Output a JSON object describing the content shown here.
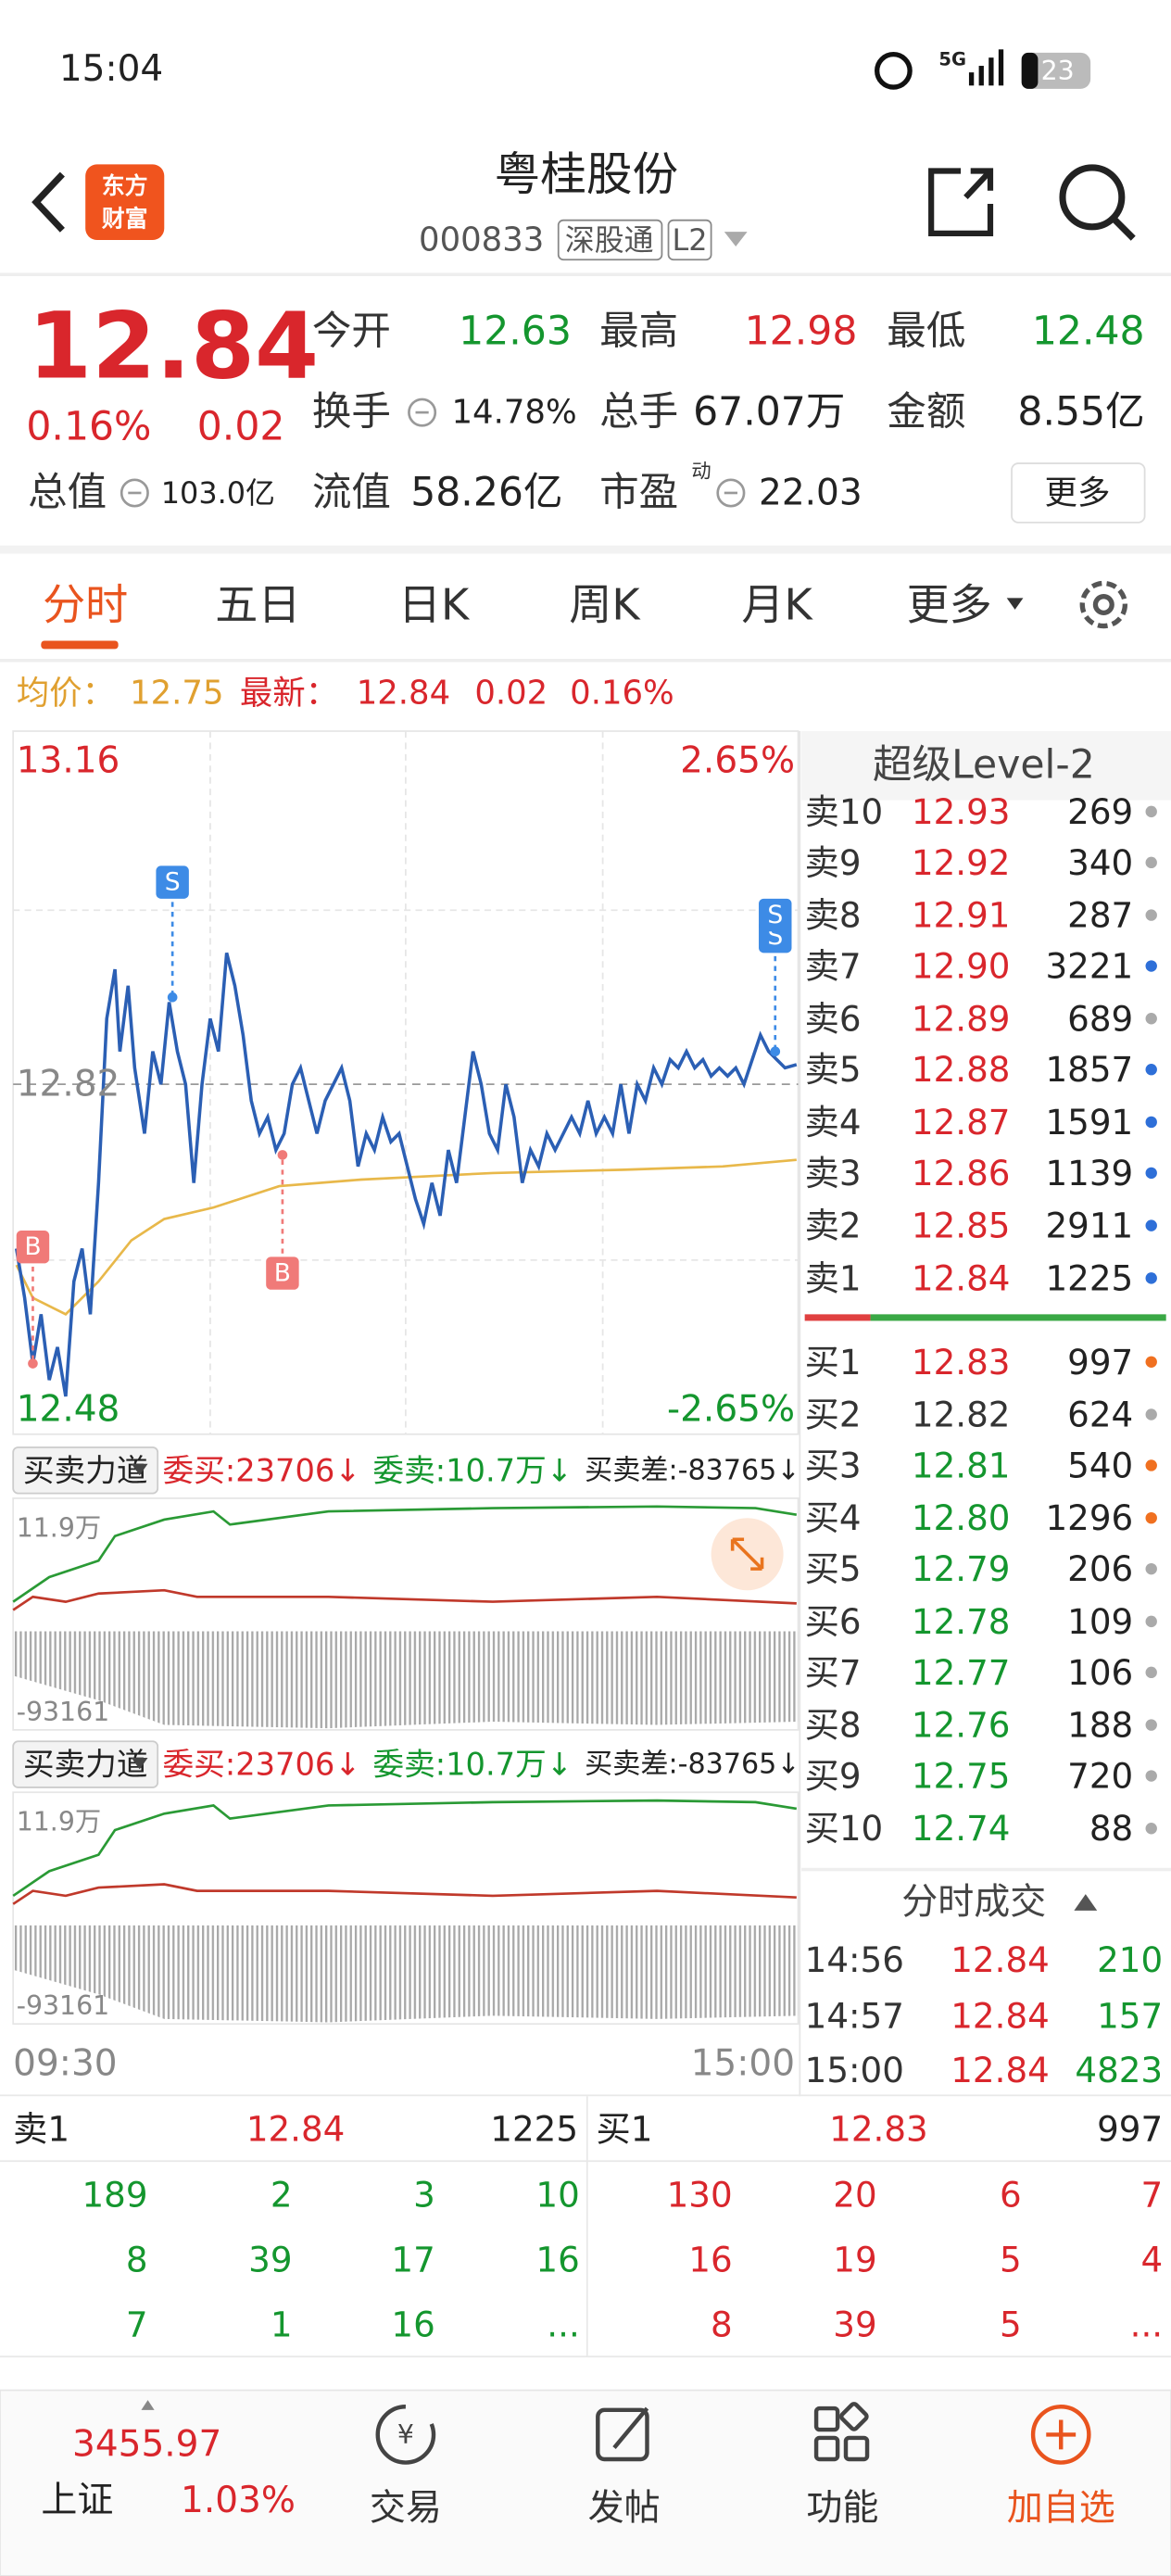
{
  "status_bar": {
    "time": "15:04",
    "network": "5G",
    "battery": "23"
  },
  "header": {
    "logo": [
      "东方",
      "财富"
    ],
    "title": "粤桂股份",
    "code": "000833",
    "tags": [
      "深股通",
      "L2"
    ]
  },
  "quote": {
    "price": "12.84",
    "change_pct": "0.16%",
    "change": "0.02",
    "more": "更多",
    "stats": [
      {
        "label": "今开",
        "value": "12.63"
      },
      {
        "label": "最高",
        "value": "12.98"
      },
      {
        "label": "最低",
        "value": "12.48"
      },
      {
        "label": "换手",
        "value": "14.78%"
      },
      {
        "label": "总手",
        "value": "67.07万"
      },
      {
        "label": "金额",
        "value": "8.55亿"
      },
      {
        "label": "总值",
        "value": "103.0亿"
      },
      {
        "label": "流值",
        "value": "58.26亿"
      },
      {
        "label": "市盈",
        "superscript": "动",
        "value": "22.03"
      }
    ]
  },
  "tabs": [
    "分时",
    "五日",
    "日K",
    "周K",
    "月K",
    "更多"
  ],
  "info_line": {
    "avg_label": "均价：",
    "avg": "12.75",
    "latest_label": "最新：",
    "latest": "12.84",
    "change": "0.02",
    "change_pct": "0.16%"
  },
  "intraday_chart": {
    "high": "13.16",
    "high_pct": "2.65%",
    "prev_close": "12.82",
    "low": "12.48",
    "low_pct": "-2.65%",
    "markers": [
      "S",
      "B",
      "B",
      "S",
      "S"
    ],
    "time_start": "09:30",
    "time_end": "15:00"
  },
  "indicator_panels": [
    {
      "selector": "买卖力道",
      "bid": "委买:23706↓",
      "ask": "委卖:10.7万↓",
      "diff": "买卖差:-83765↓",
      "max": "11.9万",
      "min": "-93161"
    },
    {
      "selector": "买卖力道",
      "bid": "委买:23706↓",
      "ask": "委卖:10.7万↓",
      "diff": "买卖差:-83765↓",
      "max": "11.9万",
      "min": "-93161"
    }
  ],
  "level2": {
    "title": "超级Level-2",
    "asks": [
      {
        "label": "卖10",
        "price": "12.93",
        "volume": "269",
        "dot": "#aaaaaa"
      },
      {
        "label": "卖9",
        "price": "12.92",
        "volume": "340",
        "dot": "#aaaaaa"
      },
      {
        "label": "卖8",
        "price": "12.91",
        "volume": "287",
        "dot": "#aaaaaa"
      },
      {
        "label": "卖7",
        "price": "12.90",
        "volume": "3221",
        "dot": "#2e6fd8"
      },
      {
        "label": "卖6",
        "price": "12.89",
        "volume": "689",
        "dot": "#aaaaaa"
      },
      {
        "label": "卖5",
        "price": "12.88",
        "volume": "1857",
        "dot": "#2e6fd8"
      },
      {
        "label": "卖4",
        "price": "12.87",
        "volume": "1591",
        "dot": "#2e6fd8"
      },
      {
        "label": "卖3",
        "price": "12.86",
        "volume": "1139",
        "dot": "#2e6fd8"
      },
      {
        "label": "卖2",
        "price": "12.85",
        "volume": "2911",
        "dot": "#2e6fd8"
      },
      {
        "label": "卖1",
        "price": "12.84",
        "volume": "1225",
        "dot": "#2e6fd8"
      }
    ],
    "bids": [
      {
        "label": "买1",
        "price": "12.83",
        "volume": "997",
        "dot": "#f07020"
      },
      {
        "label": "买2",
        "price": "12.82",
        "volume": "624",
        "dot": "#aaaaaa"
      },
      {
        "label": "买3",
        "price": "12.81",
        "volume": "540",
        "dot": "#f07020"
      },
      {
        "label": "买4",
        "price": "12.80",
        "volume": "1296",
        "dot": "#f07020"
      },
      {
        "label": "买5",
        "price": "12.79",
        "volume": "206",
        "dot": "#aaaaaa"
      },
      {
        "label": "买6",
        "price": "12.78",
        "volume": "109",
        "dot": "#aaaaaa"
      },
      {
        "label": "买7",
        "price": "12.77",
        "volume": "106",
        "dot": "#aaaaaa"
      },
      {
        "label": "买8",
        "price": "12.76",
        "volume": "188",
        "dot": "#aaaaaa"
      },
      {
        "label": "买9",
        "price": "12.75",
        "volume": "720",
        "dot": "#aaaaaa"
      },
      {
        "label": "买10",
        "price": "12.74",
        "volume": "88",
        "dot": "#aaaaaa"
      }
    ]
  },
  "trades": {
    "title": "分时成交",
    "rows": [
      {
        "time": "14:56",
        "price": "12.84",
        "volume": "210"
      },
      {
        "time": "14:57",
        "price": "12.84",
        "volume": "157"
      },
      {
        "time": "15:00",
        "price": "12.84",
        "volume": "4823"
      }
    ]
  },
  "queue": {
    "ask": {
      "label": "卖1",
      "price": "12.84",
      "volume": "1225",
      "orders": [
        [
          "189",
          "2",
          "3",
          "10"
        ],
        [
          "8",
          "39",
          "17",
          "16"
        ],
        [
          "7",
          "1",
          "16",
          "..."
        ]
      ]
    },
    "bid": {
      "label": "买1",
      "price": "12.83",
      "volume": "997",
      "orders": [
        [
          "130",
          "20",
          "6",
          "7"
        ],
        [
          "16",
          "19",
          "5",
          "4"
        ],
        [
          "8",
          "39",
          "5",
          "..."
        ]
      ]
    }
  },
  "bottom_nav": {
    "index_value": "3455.97",
    "index_name": "上证",
    "index_change": "1.03%",
    "items": [
      "交易",
      "发帖",
      "功能",
      "加自选"
    ]
  }
}
